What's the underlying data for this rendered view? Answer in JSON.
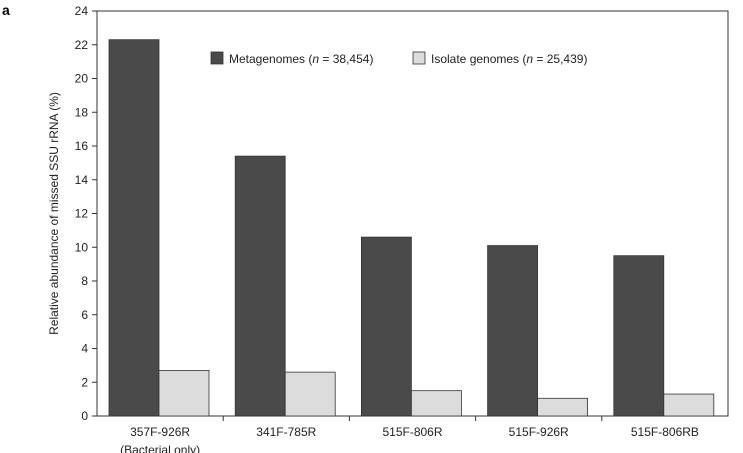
{
  "panel_label": "a",
  "chart_data": {
    "type": "bar",
    "title": "",
    "xlabel": "",
    "ylabel": "Relative abundance of missed SSU rRNA (%)",
    "ylim": [
      0,
      24
    ],
    "yticks": [
      0,
      2,
      4,
      6,
      8,
      10,
      12,
      14,
      16,
      18,
      20,
      22,
      24
    ],
    "categories": [
      "357F-926R",
      "341F-785R",
      "515F-806R",
      "515F-926R",
      "515F-806RB"
    ],
    "category_sublabels": [
      "(Bacterial only)",
      "",
      "",
      "",
      ""
    ],
    "series": [
      {
        "name": "Metagenomes",
        "n_label": "n",
        "n_value": "= 38,454",
        "color": "#4a4a4a",
        "values": [
          22.3,
          15.4,
          10.6,
          10.1,
          9.5
        ]
      },
      {
        "name": "Isolate genomes",
        "n_label": "n",
        "n_value": "= 25,439",
        "color": "#dcdcdc",
        "values": [
          2.7,
          2.6,
          1.5,
          1.05,
          1.3
        ]
      }
    ],
    "legend_position": "top-right",
    "grid": false
  }
}
